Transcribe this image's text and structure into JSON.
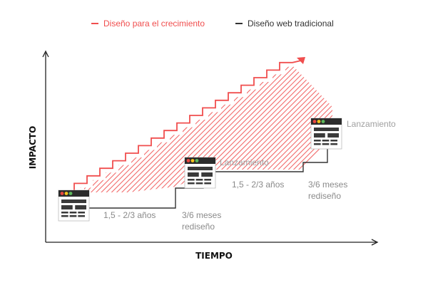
{
  "colors": {
    "growth": "#f04e4e",
    "traditional": "#333333",
    "hatch": "#f26b6b",
    "note_text": "#8a8a8a",
    "launch_text": "#a0a0a0",
    "axis": "#222222",
    "dot_red": "#e8473f",
    "dot_yellow": "#f4c21b",
    "dot_green": "#5cb85c",
    "window_body": "#ffffff",
    "window_chrome": "#2b2b2b",
    "window_block": "#3a3a3a"
  },
  "legend": {
    "growth_label": "Diseño para el crecimiento",
    "traditional_label": "Diseño web tradicional"
  },
  "axes": {
    "y_label": "IMPACTO",
    "x_label": "TIEMPO"
  },
  "annotations": {
    "period_1": "1,5 - 2/3 años",
    "redesign_1_line1": "3/6 meses",
    "redesign_1_line2": "rediseño",
    "launch_1": "Lanzamiento",
    "period_2": "1,5 - 2/3 años",
    "redesign_2_line1": "3/6 meses",
    "redesign_2_line2": "rediseño",
    "launch_2": "Lanzamiento"
  },
  "icons": {
    "browser_window": "browser-window-icon",
    "growth_arrow": "arrow-up-right-icon"
  }
}
